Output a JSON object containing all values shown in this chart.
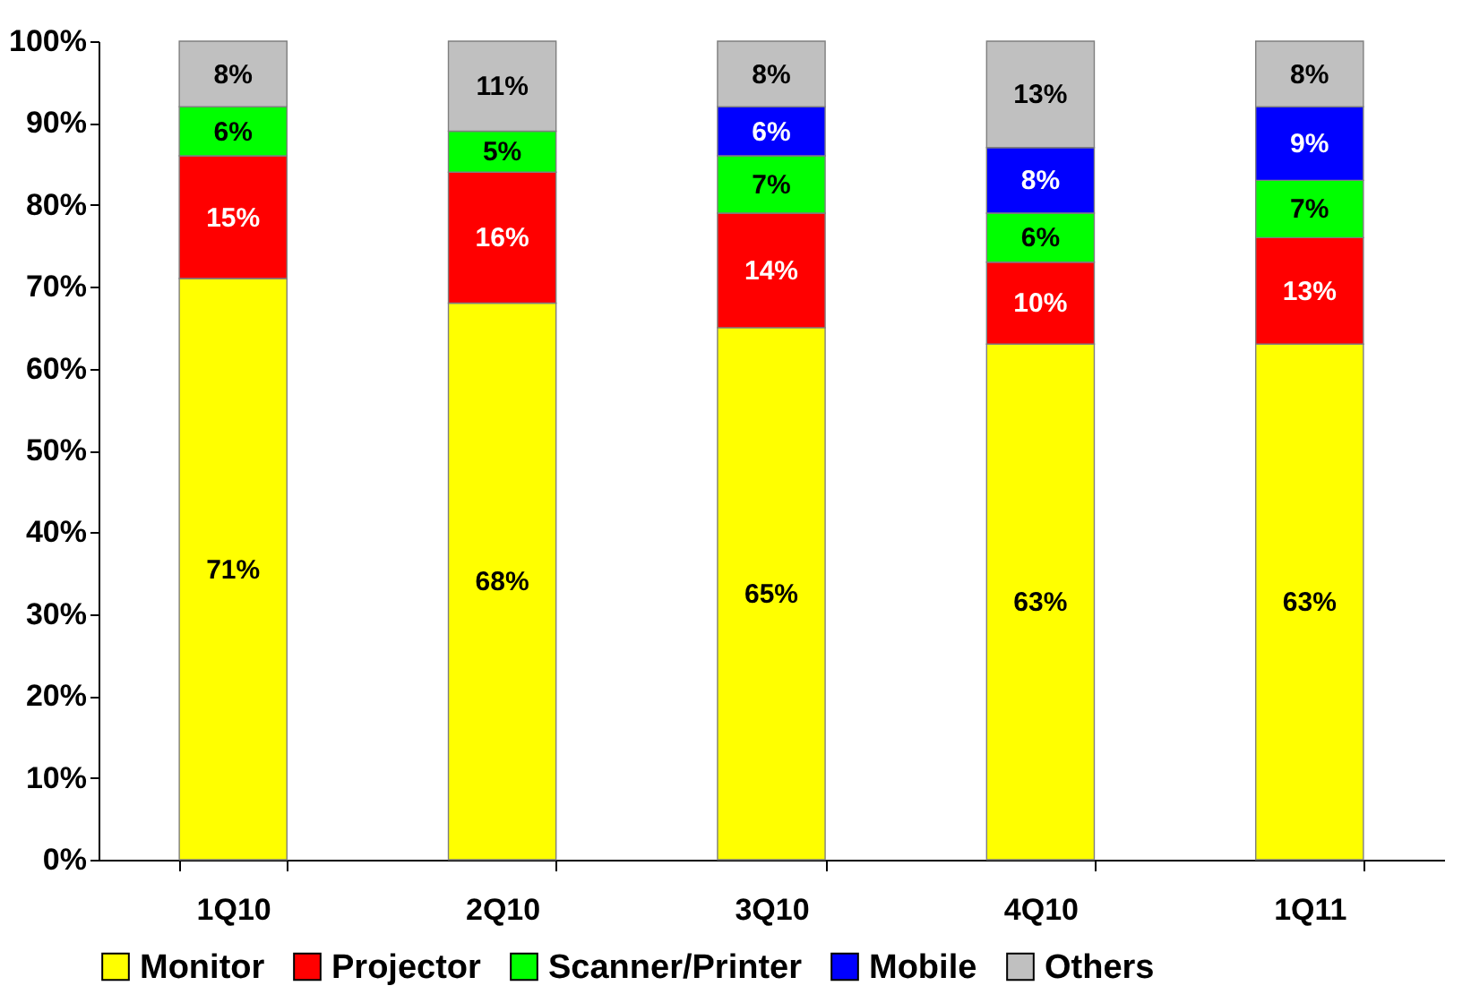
{
  "chart_data": {
    "type": "bar",
    "stacked": true,
    "categories": [
      "1Q10",
      "2Q10",
      "3Q10",
      "4Q10",
      "1Q11"
    ],
    "series": [
      {
        "name": "Monitor",
        "color": "#ffff00",
        "values": [
          71,
          68,
          65,
          63,
          63
        ],
        "value_labels": [
          "71%",
          "68%",
          "65%",
          "63%",
          "63%"
        ]
      },
      {
        "name": "Projector",
        "color": "#ff0000",
        "values": [
          15,
          16,
          14,
          10,
          13
        ],
        "value_labels": [
          "15%",
          "16%",
          "14%",
          "10%",
          "13%"
        ]
      },
      {
        "name": "Scanner/Printer",
        "color": "#00ff00",
        "values": [
          6,
          5,
          7,
          6,
          7
        ],
        "value_labels": [
          "6%",
          "5%",
          "7%",
          "6%",
          "7%"
        ]
      },
      {
        "name": "Mobile",
        "color": "#0000ff",
        "values": [
          null,
          null,
          6,
          8,
          9
        ],
        "value_labels": [
          null,
          null,
          "6%",
          "8%",
          "9%"
        ]
      },
      {
        "name": "Others",
        "color": "#c0c0c0",
        "values": [
          8,
          11,
          8,
          13,
          8
        ],
        "value_labels": [
          "8%",
          "11%",
          "8%",
          "13%",
          "8%"
        ]
      }
    ],
    "ylim": [
      0,
      100
    ],
    "yticks": [
      {
        "value": 0,
        "label": "0%"
      },
      {
        "value": 10,
        "label": "10%"
      },
      {
        "value": 20,
        "label": "20%"
      },
      {
        "value": 30,
        "label": "30%"
      },
      {
        "value": 40,
        "label": "40%"
      },
      {
        "value": 50,
        "label": "50%"
      },
      {
        "value": 60,
        "label": "60%"
      },
      {
        "value": 70,
        "label": "70%"
      },
      {
        "value": 80,
        "label": "80%"
      },
      {
        "value": 90,
        "label": "90%"
      },
      {
        "value": 100,
        "label": "100%"
      }
    ],
    "legend": "bottom"
  }
}
